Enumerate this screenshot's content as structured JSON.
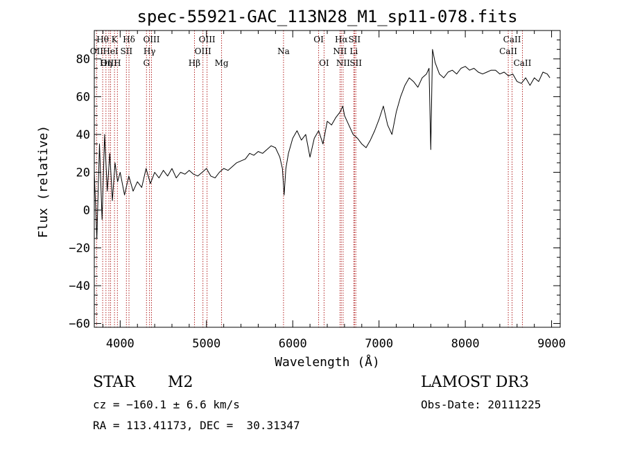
{
  "chart_data": {
    "type": "line",
    "title": "spec-55921-GAC_113N28_M1_sp11-078.fits",
    "xlabel": "Wavelength (Å)",
    "ylabel": "Flux (relative)",
    "xlim": [
      3700,
      9100
    ],
    "ylim": [
      -62,
      95
    ],
    "x_ticks": [
      4000,
      5000,
      6000,
      7000,
      8000,
      9000
    ],
    "y_ticks": [
      -60,
      -40,
      -20,
      0,
      20,
      40,
      60,
      80
    ],
    "grid": false,
    "legend": "none",
    "line_color": "#000000",
    "marker_color": "#b22222",
    "series": [
      {
        "x": [
          3700,
          3730,
          3760,
          3790,
          3820,
          3850,
          3880,
          3910,
          3940,
          3970,
          4000,
          4050,
          4100,
          4150,
          4200,
          4250,
          4300,
          4350,
          4400,
          4450,
          4500,
          4550,
          4600,
          4650,
          4700,
          4750,
          4800,
          4850,
          4900,
          4950,
          5000,
          5050,
          5100,
          5150,
          5200,
          5250,
          5300,
          5350,
          5400,
          5450,
          5500,
          5550,
          5600,
          5650,
          5700,
          5750,
          5800,
          5850,
          5880,
          5900,
          5920,
          5950,
          6000,
          6050,
          6100,
          6150,
          6200,
          6250,
          6300,
          6350,
          6400,
          6450,
          6500,
          6550,
          6580,
          6600,
          6650,
          6700,
          6750,
          6800,
          6850,
          6900,
          6950,
          7000,
          7050,
          7100,
          7150,
          7200,
          7250,
          7300,
          7350,
          7400,
          7450,
          7500,
          7550,
          7580,
          7600,
          7620,
          7650,
          7700,
          7750,
          7800,
          7850,
          7900,
          7950,
          8000,
          8050,
          8100,
          8150,
          8200,
          8250,
          8300,
          8350,
          8400,
          8450,
          8500,
          8550,
          8600,
          8650,
          8700,
          8750,
          8800,
          8850,
          8900,
          8950,
          8980
        ],
        "y": [
          20,
          -15,
          35,
          -5,
          40,
          10,
          30,
          5,
          25,
          15,
          20,
          8,
          18,
          10,
          15,
          12,
          22,
          14,
          20,
          17,
          21,
          18,
          22,
          17,
          20,
          19,
          21,
          19,
          18,
          20,
          22,
          18,
          17,
          20,
          22,
          21,
          23,
          25,
          26,
          27,
          30,
          29,
          31,
          30,
          32,
          34,
          33,
          28,
          22,
          8,
          22,
          30,
          38,
          42,
          37,
          40,
          28,
          38,
          42,
          35,
          47,
          45,
          49,
          52,
          55,
          50,
          45,
          40,
          38,
          35,
          33,
          37,
          42,
          48,
          55,
          45,
          40,
          52,
          60,
          66,
          70,
          68,
          65,
          70,
          72,
          75,
          32,
          85,
          78,
          72,
          70,
          73,
          74,
          72,
          75,
          76,
          74,
          75,
          73,
          72,
          73,
          74,
          74,
          72,
          73,
          71,
          72,
          68,
          67,
          70,
          66,
          70,
          68,
          73,
          72,
          70
        ]
      }
    ],
    "spectral_lines": [
      {
        "label": "Hθ",
        "x": 3797,
        "row": 1
      },
      {
        "label": "OII",
        "x": 3727,
        "row": 2
      },
      {
        "label": "OIII",
        "x": 3869,
        "row": 3
      },
      {
        "label": "Hη",
        "x": 3835,
        "row": 3
      },
      {
        "label": "K",
        "x": 3934,
        "row": 1
      },
      {
        "label": "HeI",
        "x": 3889,
        "row": 2
      },
      {
        "label": "H",
        "x": 3968,
        "row": 3
      },
      {
        "label": "Hδ",
        "x": 4102,
        "row": 1
      },
      {
        "label": "SII",
        "x": 4072,
        "row": 2
      },
      {
        "label": "OIII",
        "x": 4363,
        "row": 1
      },
      {
        "label": "Hγ",
        "x": 4340,
        "row": 2
      },
      {
        "label": "G",
        "x": 4305,
        "row": 3
      },
      {
        "label": "OIII",
        "x": 5007,
        "row": 1
      },
      {
        "label": "OIII",
        "x": 4959,
        "row": 2
      },
      {
        "label": "Hβ",
        "x": 4861,
        "row": 3
      },
      {
        "label": "Mg",
        "x": 5175,
        "row": 3
      },
      {
        "label": "Na",
        "x": 5893,
        "row": 2
      },
      {
        "label": "OI",
        "x": 6300,
        "row": 1
      },
      {
        "label": "OI",
        "x": 6363,
        "row": 3
      },
      {
        "label": "Hα",
        "x": 6563,
        "row": 1
      },
      {
        "label": "NII",
        "x": 6548,
        "row": 2
      },
      {
        "label": "NII",
        "x": 6584,
        "row": 3
      },
      {
        "label": "SII",
        "x": 6716,
        "row": 1
      },
      {
        "label": "Li",
        "x": 6708,
        "row": 2
      },
      {
        "label": "SII",
        "x": 6731,
        "row": 3
      },
      {
        "label": "CaII",
        "x": 8542,
        "row": 1
      },
      {
        "label": "CaII",
        "x": 8498,
        "row": 2
      },
      {
        "label": "CaII",
        "x": 8662,
        "row": 3
      }
    ]
  },
  "info": {
    "object_type": "STAR",
    "subclass": "M2",
    "survey": "LAMOST DR3",
    "cz": "cz = −160.1 ± 6.6 km/s",
    "obs_date": "Obs-Date: 20111225",
    "coords": "RA = 113.41173, DEC =  30.31347"
  }
}
